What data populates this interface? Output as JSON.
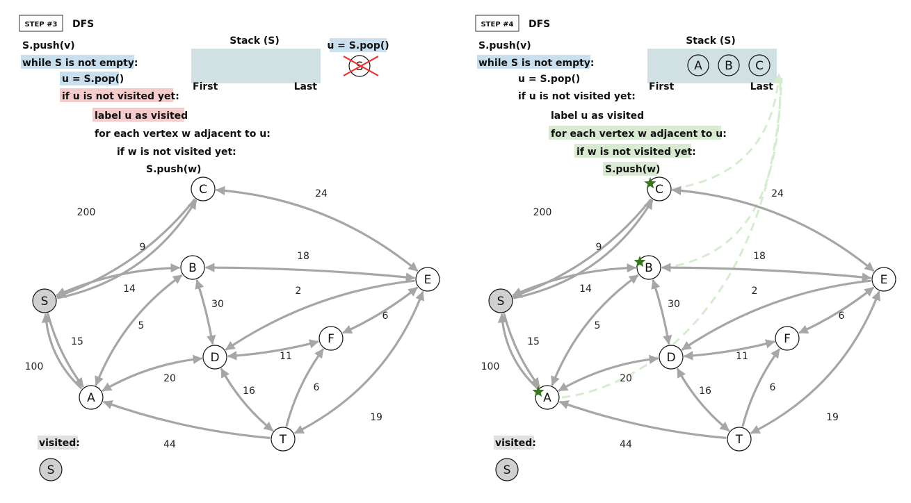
{
  "panels": [
    {
      "step_label": "STEP #3",
      "algo": "DFS",
      "code": [
        "S.push(v)",
        "while S is not empty:",
        "u = S.pop()",
        "if u is not visited yet:",
        "label u as visited",
        "for each vertex w adjacent to u:",
        "if w is not visited yet:",
        "S.push(w)"
      ],
      "stack_title": "Stack (S)",
      "stack_first": "First",
      "stack_last": "Last",
      "stack_items": [],
      "pop_label": "u = S.pop()",
      "popped_node": "S",
      "visited_label": "visited:",
      "visited_nodes": [
        "S"
      ]
    },
    {
      "step_label": "STEP #4",
      "algo": "DFS",
      "code": [
        "S.push(v)",
        "while S is not empty:",
        "u = S.pop()",
        "if u is not visited yet:",
        "label u as visited",
        "for each vertex w adjacent to u:",
        "if w is not visited yet:",
        "S.push(w)"
      ],
      "stack_title": "Stack (S)",
      "stack_first": "First",
      "stack_last": "Last",
      "stack_items": [
        "A",
        "B",
        "C"
      ],
      "visited_label": "visited:",
      "visited_nodes": [
        "S"
      ]
    }
  ],
  "graph": {
    "nodes": [
      "S",
      "A",
      "B",
      "C",
      "D",
      "E",
      "F",
      "T"
    ],
    "edges": [
      {
        "from": "S",
        "to": "C",
        "weight": "200"
      },
      {
        "from": "C",
        "to": "S",
        "weight": "9"
      },
      {
        "from": "C",
        "to": "E",
        "weight": "24"
      },
      {
        "from": "B",
        "to": "E",
        "weight": "18"
      },
      {
        "from": "S",
        "to": "B",
        "weight": "14"
      },
      {
        "from": "E",
        "to": "D",
        "weight": "2"
      },
      {
        "from": "B",
        "to": "D",
        "weight": "30"
      },
      {
        "from": "A",
        "to": "S",
        "weight": "15"
      },
      {
        "from": "A",
        "to": "B",
        "weight": "5"
      },
      {
        "from": "F",
        "to": "E",
        "weight": "6"
      },
      {
        "from": "S",
        "to": "A",
        "weight": "100"
      },
      {
        "from": "F",
        "to": "D",
        "weight": "11"
      },
      {
        "from": "A",
        "to": "D",
        "weight": "20"
      },
      {
        "from": "D",
        "to": "T",
        "weight": "16"
      },
      {
        "from": "T",
        "to": "F",
        "weight": "6"
      },
      {
        "from": "E",
        "to": "T",
        "weight": "19"
      },
      {
        "from": "T",
        "to": "A",
        "weight": "44"
      }
    ],
    "shaded_nodes": [
      "S"
    ],
    "starred_nodes_step4": [
      "C",
      "B",
      "A"
    ]
  },
  "colors": {
    "edge": "#a6a6a6",
    "node_fill": "#ffffff",
    "shaded_node": "#d0d0d0",
    "blue_highlight": "#c9dfee",
    "red_highlight": "#f4cccc",
    "green_highlight": "#d9ead3",
    "stack_bg": "#d0e0e3",
    "star": "#38761d",
    "cross": "#e53935",
    "dash": "#d6ecd0"
  }
}
